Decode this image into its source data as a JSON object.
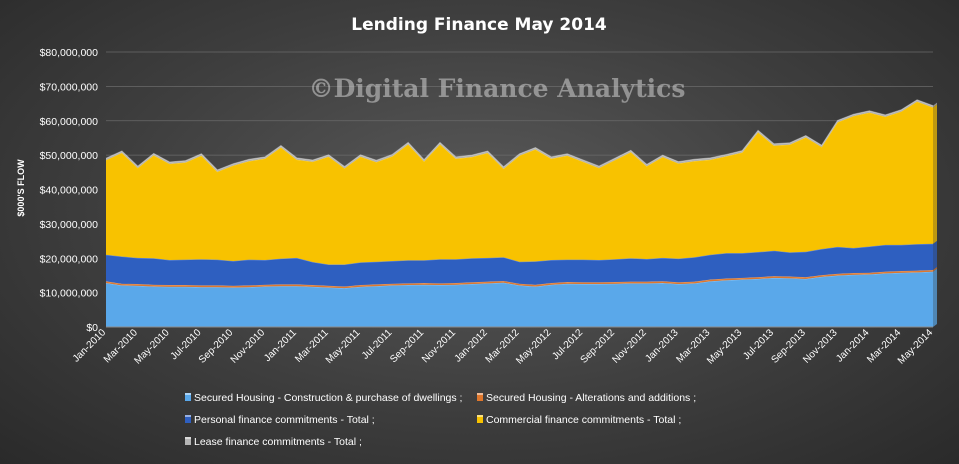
{
  "chart_data": {
    "type": "area",
    "stacked": true,
    "title": "Lending  Finance  May  2014",
    "watermark": "©Digital Finance Analytics",
    "ylabel": "$000'S FLOW",
    "xlabel": "",
    "ylim": [
      0,
      80000000
    ],
    "yticks": [
      "$0",
      "$10,000,000",
      "$20,000,000",
      "$30,000,000",
      "$40,000,000",
      "$50,000,000",
      "$60,000,000",
      "$70,000,000",
      "$80,000,000"
    ],
    "grid": true,
    "legend_position": "bottom",
    "x": [
      "Jan-2010",
      "Feb-2010",
      "Mar-2010",
      "Apr-2010",
      "May-2010",
      "Jun-2010",
      "Jul-2010",
      "Aug-2010",
      "Sep-2010",
      "Oct-2010",
      "Nov-2010",
      "Dec-2010",
      "Jan-2011",
      "Feb-2011",
      "Mar-2011",
      "Apr-2011",
      "May-2011",
      "Jun-2011",
      "Jul-2011",
      "Aug-2011",
      "Sep-2011",
      "Oct-2011",
      "Nov-2011",
      "Dec-2011",
      "Jan-2012",
      "Feb-2012",
      "Mar-2012",
      "Apr-2012",
      "May-2012",
      "Jun-2012",
      "Jul-2012",
      "Aug-2012",
      "Sep-2012",
      "Oct-2012",
      "Nov-2012",
      "Dec-2012",
      "Jan-2013",
      "Feb-2013",
      "Mar-2013",
      "Apr-2013",
      "May-2013",
      "Jun-2013",
      "Jul-2013",
      "Aug-2013",
      "Sep-2013",
      "Oct-2013",
      "Nov-2013",
      "Dec-2013",
      "Jan-2014",
      "Feb-2014",
      "Mar-2014",
      "Apr-2014",
      "May-2014"
    ],
    "xticks_shown": [
      "Jan-2010",
      "Mar-2010",
      "May-2010",
      "Jul-2010",
      "Sep-2010",
      "Nov-2010",
      "Jan-2011",
      "Mar-2011",
      "May-2011",
      "Jul-2011",
      "Sep-2011",
      "Nov-2011",
      "Jan-2012",
      "Mar-2012",
      "May-2012",
      "Jul-2012",
      "Sep-2012",
      "Nov-2012",
      "Jan-2013",
      "Mar-2013",
      "May-2013",
      "Jul-2013",
      "Sep-2013",
      "Nov-2013",
      "Jan-2014",
      "Mar-2014",
      "May-2014"
    ],
    "series": [
      {
        "name": "Secured Housing - Construction & purchase of dwellings",
        "color": "#5aa8ea",
        "values": [
          12800000,
          12100000,
          12000000,
          11800000,
          11700000,
          11700000,
          11600000,
          11600000,
          11500000,
          11600000,
          11800000,
          11900000,
          11900000,
          11700000,
          11500000,
          11300000,
          11700000,
          11900000,
          12100000,
          12200000,
          12300000,
          12200000,
          12300000,
          12500000,
          12700000,
          12900000,
          12100000,
          11800000,
          12300000,
          12600000,
          12500000,
          12500000,
          12600000,
          12700000,
          12700000,
          12800000,
          12500000,
          12700000,
          13300000,
          13600000,
          13800000,
          14000000,
          14300000,
          14200000,
          14000000,
          14600000,
          15000000,
          15200000,
          15300000,
          15600000,
          15800000,
          15900000,
          16100000
        ]
      },
      {
        "name": "Secured Housing - Alterations and additions",
        "color": "#e0772c",
        "values": [
          500000,
          500000,
          500000,
          500000,
          500000,
          500000,
          500000,
          500000,
          500000,
          500000,
          500000,
          500000,
          500000,
          500000,
          500000,
          500000,
          500000,
          500000,
          500000,
          500000,
          500000,
          500000,
          500000,
          500000,
          500000,
          500000,
          500000,
          500000,
          500000,
          500000,
          500000,
          500000,
          500000,
          500000,
          500000,
          500000,
          500000,
          500000,
          500000,
          500000,
          500000,
          500000,
          500000,
          500000,
          500000,
          500000,
          500000,
          500000,
          500000,
          500000,
          500000,
          500000,
          500000
        ]
      },
      {
        "name": "Personal finance commitments - Total",
        "color": "#2e5fc0",
        "values": [
          7700000,
          7900000,
          7600000,
          7700000,
          7300000,
          7400000,
          7600000,
          7500000,
          7200000,
          7500000,
          7200000,
          7500000,
          7700000,
          6700000,
          6200000,
          6400000,
          6600000,
          6600000,
          6600000,
          6700000,
          6600000,
          7000000,
          6900000,
          7000000,
          6900000,
          6900000,
          6400000,
          6800000,
          6700000,
          6500000,
          6600000,
          6500000,
          6600000,
          6800000,
          6600000,
          6800000,
          6900000,
          7100000,
          7200000,
          7400000,
          7200000,
          7300000,
          7400000,
          7000000,
          7400000,
          7600000,
          7800000,
          7300000,
          7600000,
          7800000,
          7600000,
          7700000,
          7600000
        ]
      },
      {
        "name": "Commercial finance commitments - Total",
        "color": "#f8c200",
        "values": [
          27600000,
          30200000,
          26200000,
          30000000,
          28000000,
          28300000,
          30200000,
          25600000,
          27800000,
          28700000,
          29500000,
          32400000,
          28600000,
          29200000,
          31400000,
          28000000,
          30800000,
          29000000,
          30500000,
          33800000,
          28800000,
          33500000,
          29300000,
          29500000,
          30600000,
          25800000,
          30900000,
          32600000,
          29500000,
          30300000,
          28500000,
          26800000,
          28900000,
          30900000,
          27000000,
          29400000,
          27700000,
          28000000,
          27700000,
          28200000,
          29300000,
          34900000,
          30600000,
          31400000,
          33300000,
          29700000,
          36300000,
          38400000,
          39000000,
          37300000,
          38800000,
          41500000,
          39700000
        ]
      },
      {
        "name": "Lease finance commitments - Total",
        "color": "#b5b5b5",
        "values": [
          500000,
          500000,
          500000,
          500000,
          500000,
          500000,
          500000,
          500000,
          500000,
          500000,
          500000,
          500000,
          500000,
          500000,
          500000,
          500000,
          500000,
          500000,
          500000,
          500000,
          500000,
          500000,
          500000,
          500000,
          500000,
          500000,
          500000,
          500000,
          500000,
          500000,
          500000,
          500000,
          500000,
          500000,
          500000,
          500000,
          500000,
          500000,
          500000,
          500000,
          500000,
          500000,
          500000,
          500000,
          500000,
          500000,
          500000,
          500000,
          500000,
          500000,
          500000,
          500000,
          500000
        ]
      }
    ],
    "legend": [
      "Secured Housing - Construction & purchase of dwellings ;",
      "Secured Housing - Alterations and additions ;",
      "Personal finance commitments - Total ;",
      "Commercial finance commitments - Total ;",
      "Lease finance commitments - Total ;"
    ]
  }
}
